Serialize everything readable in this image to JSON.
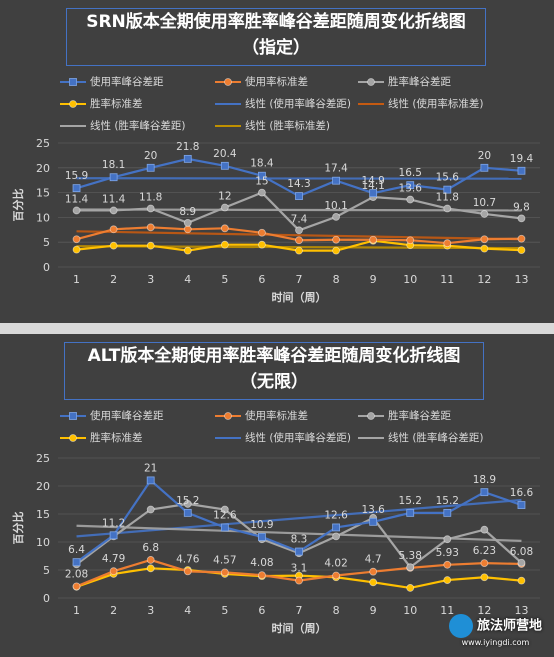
{
  "chart_data": [
    {
      "type": "line",
      "title": "SRN版本全期使用率胜率峰谷差距随周变化折线图",
      "subtitle": "（指定）",
      "xlabel": "时间（周）",
      "ylabel": "百分比",
      "x": [
        1,
        2,
        3,
        4,
        5,
        6,
        7,
        8,
        9,
        10,
        11,
        12,
        13
      ],
      "ylim": [
        0,
        25
      ],
      "yticks": [
        0,
        5,
        10,
        15,
        20,
        25
      ],
      "grid": true,
      "legend_position": "top",
      "series": [
        {
          "name": "使用率峰谷差距",
          "color": "#4472c4",
          "marker": "square",
          "values": [
            15.9,
            18.1,
            20,
            21.8,
            20.4,
            18.4,
            14.3,
            17.4,
            14.9,
            16.5,
            15.6,
            20,
            19.4
          ],
          "labels": [
            "15.9",
            "18.1",
            "20",
            "21.8",
            "20.4",
            "18.4",
            "14.3",
            "17.4",
            "14.9",
            "16.5",
            "15.6",
            "20",
            "19.4"
          ]
        },
        {
          "name": "使用率标准差",
          "color": "#ed7d31",
          "marker": "circle",
          "values": [
            5.6,
            7.6,
            8.0,
            7.6,
            7.8,
            6.9,
            5.4,
            5.5,
            5.5,
            5.4,
            4.8,
            5.6,
            5.7
          ],
          "labels": []
        },
        {
          "name": "胜率峰谷差距",
          "color": "#a5a5a5",
          "marker": "circle",
          "values": [
            11.4,
            11.4,
            11.8,
            8.9,
            12,
            15,
            7.4,
            10.1,
            14.1,
            13.6,
            11.8,
            10.7,
            9.8
          ],
          "labels": [
            "11.4",
            "11.4",
            "11.8",
            "8.9",
            "12",
            "15",
            "7.4",
            "10.1",
            "14.1",
            "13.6",
            "11.8",
            "10.7",
            "9.8"
          ]
        },
        {
          "name": "胜率标准差",
          "color": "#ffc000",
          "marker": "circle",
          "values": [
            3.5,
            4.3,
            4.3,
            3.3,
            4.5,
            4.5,
            3.3,
            3.3,
            5.3,
            4.4,
            4.3,
            3.7,
            3.4
          ],
          "labels": []
        }
      ],
      "trendlines": [
        {
          "name": "线性 (使用率峰谷差距)",
          "color": "#4472c4",
          "from": 17.9,
          "to": 17.8
        },
        {
          "name": "线性 (使用率标准差)",
          "color": "#c55a11",
          "from": 7.2,
          "to": 5.6
        },
        {
          "name": "线性 (胜率峰谷差距)",
          "color": "#a5a5a5",
          "from": 11.6,
          "to": 11.4
        },
        {
          "name": "线性 (胜率标准差)",
          "color": "#bf9000",
          "from": 4.2,
          "to": 3.8
        }
      ]
    },
    {
      "type": "line",
      "title": "ALT版本全期使用率胜率峰谷差距随周变化折线图",
      "subtitle": "（无限）",
      "xlabel": "时间（周）",
      "ylabel": "百分比",
      "x": [
        1,
        2,
        3,
        4,
        5,
        6,
        7,
        8,
        9,
        10,
        11,
        12,
        13
      ],
      "ylim": [
        0,
        25
      ],
      "yticks": [
        0,
        5,
        10,
        15,
        20,
        25
      ],
      "grid": true,
      "legend_position": "top",
      "series": [
        {
          "name": "使用率峰谷差距",
          "color": "#4472c4",
          "marker": "square",
          "values": [
            6.4,
            11.2,
            21,
            15.2,
            12.6,
            10.9,
            8.3,
            12.6,
            13.6,
            15.2,
            15.2,
            18.9,
            16.6
          ],
          "labels": [
            "6.4",
            "11.2",
            "21",
            "15.2",
            "12.6",
            "10.9",
            "8.3",
            "12.6",
            "13.6",
            "15.2",
            "15.2",
            "18.9",
            "16.6"
          ]
        },
        {
          "name": "使用率标准差",
          "color": "#ed7d31",
          "marker": "circle",
          "values": [
            2.08,
            4.79,
            6.8,
            4.76,
            4.57,
            4.08,
            3.1,
            4.02,
            4.7,
            5.38,
            5.93,
            6.23,
            6.08
          ],
          "labels": [
            "2.08",
            "4.79",
            "6.8",
            "4.76",
            "4.57",
            "4.08",
            "3.1",
            "4.02",
            "4.7",
            "5.38",
            "5.93",
            "6.23",
            "6.08"
          ]
        },
        {
          "name": "胜率峰谷差距",
          "color": "#a5a5a5",
          "marker": "circle",
          "values": [
            6.0,
            11.0,
            15.8,
            16.8,
            15.8,
            10.5,
            8.0,
            11.0,
            14.3,
            5.5,
            10.5,
            12.2,
            6.3
          ],
          "labels": []
        },
        {
          "name": "胜率标准差",
          "color": "#ffc000",
          "marker": "circle",
          "values": [
            2.0,
            4.3,
            5.3,
            5.0,
            4.3,
            3.9,
            4.0,
            3.7,
            2.8,
            1.8,
            3.2,
            3.7,
            3.1
          ],
          "labels": []
        }
      ],
      "trendlines": [
        {
          "name": "线性 (使用率峰谷差距)",
          "color": "#4472c4",
          "from": 11.0,
          "to": 17.5
        },
        {
          "name": "线性 (胜率峰谷差距)",
          "color": "#a5a5a5",
          "from": 12.9,
          "to": 10.2
        }
      ]
    }
  ],
  "watermark": {
    "text": "旅法师营地",
    "sub": "www.iyingdi.com"
  }
}
